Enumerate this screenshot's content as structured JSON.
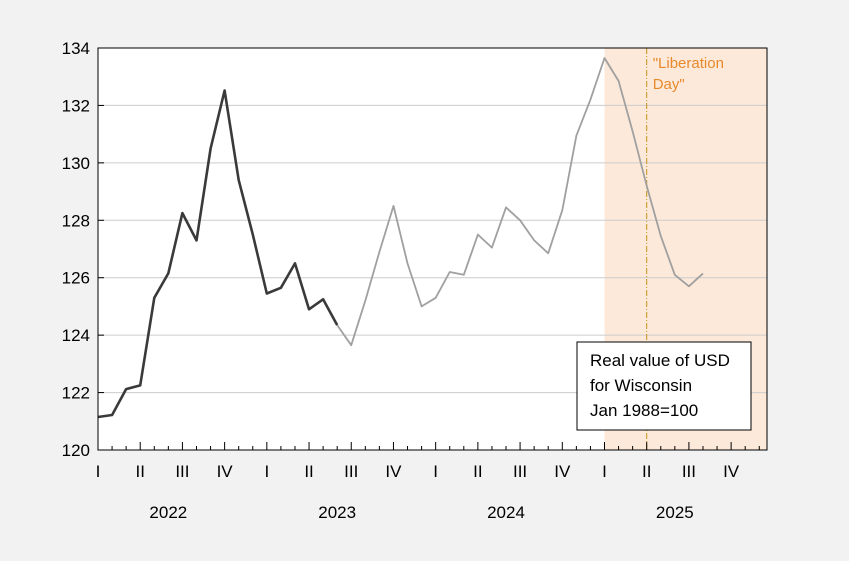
{
  "chart_data": {
    "type": "line",
    "title": "",
    "xlabel": "",
    "ylabel": "",
    "ylim": [
      120,
      134
    ],
    "yticks": [
      120,
      122,
      124,
      126,
      128,
      130,
      132,
      134
    ],
    "grid": "horizontal",
    "x_start": "2022-01",
    "x_end": "2025-12",
    "quarter_labels": [
      "I",
      "II",
      "III",
      "IV",
      "I",
      "II",
      "III",
      "IV",
      "I",
      "II",
      "III",
      "IV",
      "I",
      "II",
      "III",
      "IV"
    ],
    "year_labels": [
      "2022",
      "2023",
      "2024",
      "2025"
    ],
    "series": [
      {
        "color": "#3a3a3a",
        "points": [
          [
            "2022-01",
            121.15
          ],
          [
            "2022-02",
            121.22
          ],
          [
            "2022-03",
            122.12
          ],
          [
            "2022-04",
            122.25
          ],
          [
            "2022-05",
            125.3
          ],
          [
            "2022-06",
            126.15
          ],
          [
            "2022-07",
            128.25
          ],
          [
            "2022-08",
            127.3
          ],
          [
            "2022-09",
            130.5
          ],
          [
            "2022-10",
            132.52
          ],
          [
            "2022-11",
            129.4
          ],
          [
            "2022-12",
            127.5
          ],
          [
            "2023-01",
            125.45
          ],
          [
            "2023-02",
            125.65
          ],
          [
            "2023-03",
            126.5
          ],
          [
            "2023-04",
            124.9
          ],
          [
            "2023-05",
            125.25
          ],
          [
            "2023-06",
            124.35
          ]
        ]
      },
      {
        "color": "#a0a0a0",
        "points": [
          [
            "2023-06",
            124.35
          ],
          [
            "2023-07",
            123.65
          ],
          [
            "2023-08",
            125.2
          ],
          [
            "2023-09",
            126.9
          ],
          [
            "2023-10",
            128.5
          ],
          [
            "2023-11",
            126.5
          ],
          [
            "2023-12",
            125.0
          ],
          [
            "2024-01",
            125.3
          ],
          [
            "2024-02",
            126.2
          ],
          [
            "2024-03",
            126.1
          ],
          [
            "2024-04",
            127.5
          ],
          [
            "2024-05",
            127.05
          ],
          [
            "2024-06",
            128.45
          ],
          [
            "2024-07",
            128.0
          ],
          [
            "2024-08",
            127.3
          ],
          [
            "2024-09",
            126.85
          ],
          [
            "2024-10",
            128.35
          ],
          [
            "2024-11",
            130.95
          ],
          [
            "2024-12",
            132.2
          ],
          [
            "2025-01",
            133.65
          ],
          [
            "2025-02",
            132.85
          ],
          [
            "2025-03",
            131.1
          ],
          [
            "2025-04",
            129.2
          ],
          [
            "2025-05",
            127.45
          ],
          [
            "2025-06",
            126.1
          ],
          [
            "2025-07",
            125.7
          ],
          [
            "2025-08",
            126.15
          ]
        ]
      }
    ],
    "shaded_region": {
      "from": "2025-01",
      "to": "2025-12",
      "color": "#fde9d9"
    },
    "vertical_line": {
      "at": "2025-04",
      "color": "#c8921a",
      "label_lines": [
        "\"Liberation",
        "Day\""
      ]
    },
    "legend_lines": [
      "Real value of USD",
      "for Wisconsin",
      "Jan 1988=100"
    ],
    "legend_position": "bottom-right",
    "colors": {
      "annotation": "#e8892b"
    }
  }
}
